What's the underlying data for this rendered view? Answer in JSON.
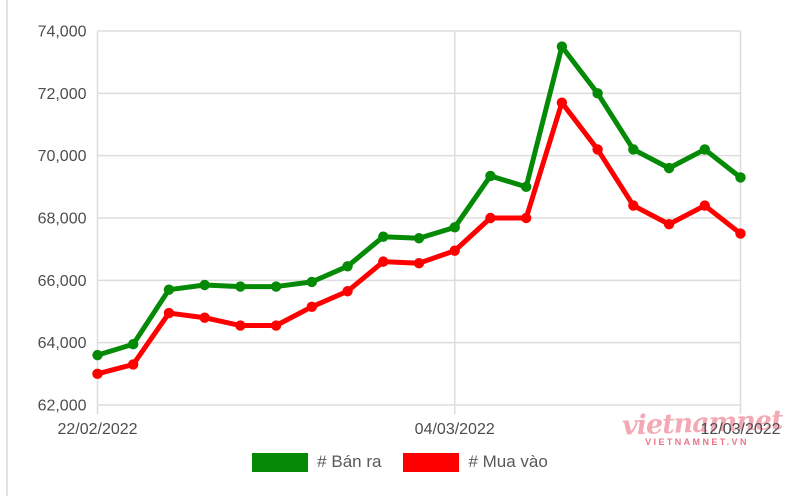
{
  "chart_data": {
    "type": "line",
    "title": "",
    "xlabel": "",
    "ylabel": "",
    "x": [
      "22/02/2022",
      "23/02/2022",
      "24/02/2022",
      "25/02/2022",
      "26/02/2022",
      "27/02/2022",
      "28/02/2022",
      "01/03/2022",
      "02/03/2022",
      "03/03/2022",
      "04/03/2022",
      "05/03/2022",
      "06/03/2022",
      "07/03/2022",
      "08/03/2022",
      "09/03/2022",
      "10/03/2022",
      "11/03/2022",
      "12/03/2022"
    ],
    "series": [
      {
        "name": "# Bán ra",
        "color": "#058a05",
        "values": [
          63600,
          63950,
          65700,
          65850,
          65800,
          65800,
          65950,
          66450,
          67400,
          67350,
          67700,
          69350,
          69000,
          73500,
          72000,
          70200,
          69600,
          70200,
          69300
        ]
      },
      {
        "name": "# Mua vào",
        "color": "#ff0000",
        "values": [
          63000,
          63300,
          64950,
          64800,
          64550,
          64550,
          65150,
          65650,
          66600,
          66550,
          66950,
          68000,
          68000,
          71700,
          70200,
          68400,
          67800,
          68400,
          67500
        ]
      }
    ],
    "ylim": [
      62000,
      74000
    ],
    "grid": true,
    "legend_position": "bottom",
    "y_ticks": [
      {
        "value": 62000,
        "label": "62,000"
      },
      {
        "value": 64000,
        "label": "64,000"
      },
      {
        "value": 66000,
        "label": "66,000"
      },
      {
        "value": 68000,
        "label": "68,000"
      },
      {
        "value": 70000,
        "label": "70,000"
      },
      {
        "value": 72000,
        "label": "72,000"
      },
      {
        "value": 74000,
        "label": "74,000"
      }
    ],
    "x_ticks": [
      {
        "index": 0,
        "label": "22/02/2022"
      },
      {
        "index": 10,
        "label": "04/03/2022"
      },
      {
        "index": 18,
        "label": "12/03/2022"
      }
    ]
  },
  "legend": {
    "items": [
      {
        "label": "# Bán ra",
        "color": "#058a05"
      },
      {
        "label": "# Mua vào",
        "color": "#ff0000"
      }
    ]
  },
  "watermark": {
    "logo_text": "vietnamnet",
    "site_text": "VIETNAMNET.VN"
  },
  "colors": {
    "grid": "#dddddd",
    "axis_text": "#4d4d4d",
    "legend_text": "#595959"
  }
}
